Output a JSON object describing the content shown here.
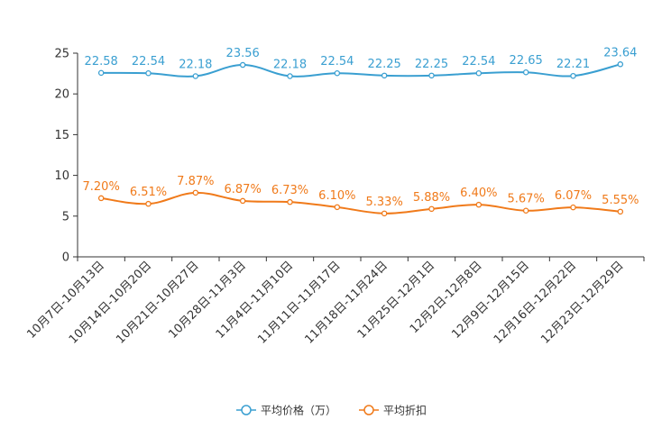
{
  "chart_data": {
    "type": "line",
    "categories": [
      "10月7日-10月13日",
      "10月14日-10月20日",
      "10月21日-10月27日",
      "10月28日-11月3日",
      "11月4日-11月10日",
      "11月11日-11月17日",
      "11月18日-11月24日",
      "11月25日-12月1日",
      "12月2日-12月8日",
      "12月9日-12月15日",
      "12月16日-12月22日",
      "12月23日-12月29日"
    ],
    "series": [
      {
        "name": "平均价格（万）",
        "color": "#3a9fd1",
        "values": [
          22.58,
          22.54,
          22.18,
          23.56,
          22.18,
          22.54,
          22.25,
          22.25,
          22.54,
          22.65,
          22.21,
          23.64
        ],
        "labels": [
          "22.58",
          "22.54",
          "22.18",
          "23.56",
          "22.18",
          "22.54",
          "22.25",
          "22.25",
          "22.54",
          "22.65",
          "22.21",
          "23.64"
        ]
      },
      {
        "name": "平均折扣",
        "color": "#f07a1a",
        "values": [
          7.2,
          6.51,
          7.87,
          6.87,
          6.73,
          6.1,
          5.33,
          5.88,
          6.4,
          5.67,
          6.07,
          5.55
        ],
        "labels": [
          "7.20%",
          "6.51%",
          "7.87%",
          "6.87%",
          "6.73%",
          "6.10%",
          "5.33%",
          "5.88%",
          "6.40%",
          "5.67%",
          "6.07%",
          "5.55%"
        ]
      }
    ],
    "yticks": [
      "0",
      "5",
      "10",
      "15",
      "20",
      "25"
    ],
    "ylim": [
      0,
      25
    ],
    "legend_position": "bottom-center"
  }
}
